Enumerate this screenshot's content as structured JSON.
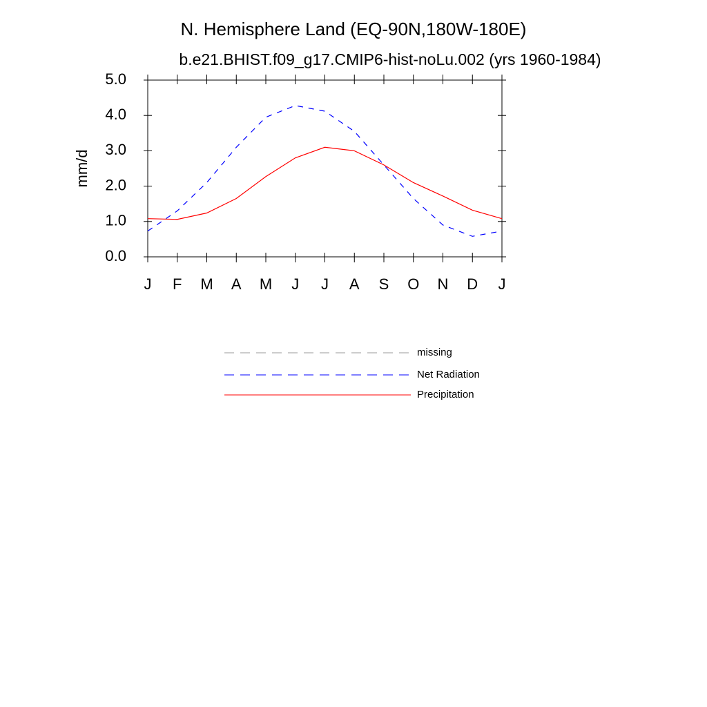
{
  "chart_data": {
    "type": "line",
    "title": "N. Hemisphere Land (EQ-90N,180W-180E)",
    "subtitle": "b.e21.BHIST.f09_g17.CMIP6-hist-noLu.002 (yrs 1960-1984)",
    "y_label": "mm/d",
    "categories": [
      "J",
      "F",
      "M",
      "A",
      "M",
      "J",
      "J",
      "A",
      "S",
      "O",
      "N",
      "D",
      "J"
    ],
    "ylim": [
      0,
      5
    ],
    "yticks": [
      {
        "value": 0,
        "label": "0.0"
      },
      {
        "value": 1,
        "label": "1.0"
      },
      {
        "value": 2,
        "label": "2.0"
      },
      {
        "value": 3,
        "label": "3.0"
      },
      {
        "value": 4,
        "label": "4.0"
      },
      {
        "value": 5,
        "label": "5.0"
      }
    ],
    "series": [
      {
        "name": "missing",
        "color": "#999999",
        "dashed": true,
        "values": [
          null,
          null,
          null,
          null,
          null,
          null,
          null,
          null,
          null,
          null,
          null,
          null,
          null
        ]
      },
      {
        "name": "Net Radiation",
        "color": "#0000ff",
        "dashed": true,
        "values": [
          0.73,
          1.3,
          2.1,
          3.1,
          3.95,
          4.28,
          4.12,
          3.55,
          2.6,
          1.65,
          0.9,
          0.58,
          0.73
        ]
      },
      {
        "name": "Precipitation",
        "color": "#ff0000",
        "dashed": false,
        "values": [
          1.08,
          1.06,
          1.24,
          1.65,
          2.27,
          2.8,
          3.1,
          3.0,
          2.6,
          2.1,
          1.72,
          1.32,
          1.08
        ]
      }
    ]
  }
}
